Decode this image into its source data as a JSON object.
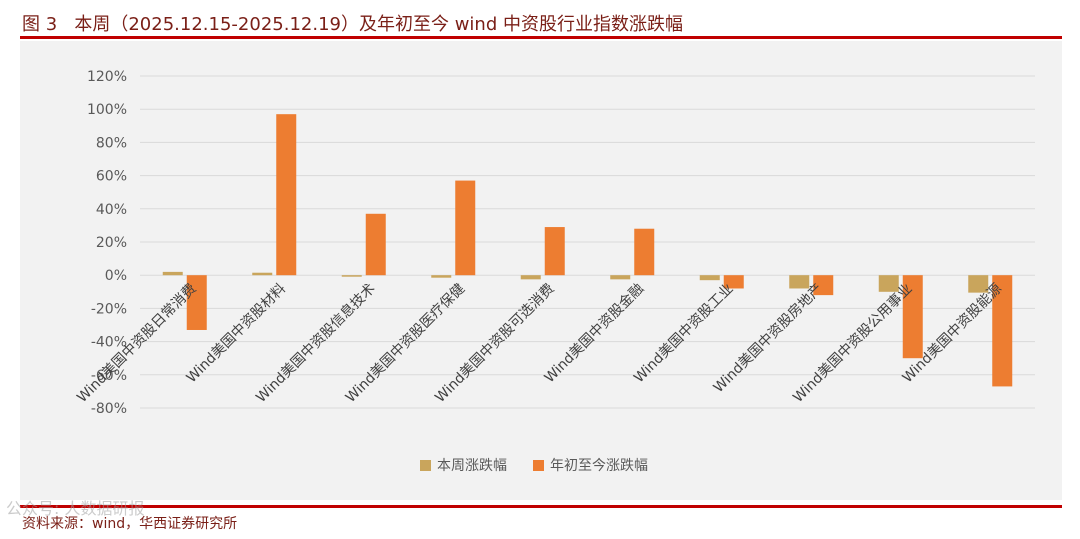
{
  "figure_label": "图 3",
  "title": "本周（2025.12.15-2025.12.19）及年初至今 wind 中资股行业指数涨跌幅",
  "source": "资料来源：wind，华西证券研究所",
  "watermark": "公众号: 人数据研报",
  "colors": {
    "weekly": "#c9a55c",
    "ytd": "#ed7d31",
    "rule": "#c00000",
    "grid": "#d9d9d9"
  },
  "chart_data": {
    "type": "bar",
    "title": "",
    "xlabel": "",
    "ylabel": "",
    "ylim": [
      -0.8,
      1.2
    ],
    "yticks": [
      1.2,
      1.0,
      0.8,
      0.6,
      0.4,
      0.2,
      0.0,
      -0.2,
      -0.4,
      -0.6,
      -0.8
    ],
    "ytick_labels": [
      "120%",
      "100%",
      "80%",
      "60%",
      "40%",
      "20%",
      "0%",
      "-20%",
      "-40%",
      "-60%",
      "-80%"
    ],
    "categories": [
      "Wind美国中资股日常消费",
      "Wind美国中资股材料",
      "Wind美国中资股信息技术",
      "Wind美国中资股医疗保健",
      "Wind美国中资股可选消费",
      "Wind美国中资股金融",
      "Wind美国中资股工业",
      "Wind美国中资股房地产",
      "Wind美国中资股公用事业",
      "Wind美国中资股能源"
    ],
    "series": [
      {
        "name": "本周涨跌幅",
        "values": [
          0.02,
          0.015,
          -0.005,
          -0.015,
          -0.025,
          -0.025,
          -0.03,
          -0.08,
          -0.1,
          -0.105
        ]
      },
      {
        "name": "年初至今涨跌幅",
        "values": [
          -0.33,
          0.97,
          0.37,
          0.57,
          0.29,
          0.28,
          -0.08,
          -0.12,
          -0.5,
          -0.67
        ]
      }
    ],
    "grid": true,
    "legend": "bottom"
  }
}
